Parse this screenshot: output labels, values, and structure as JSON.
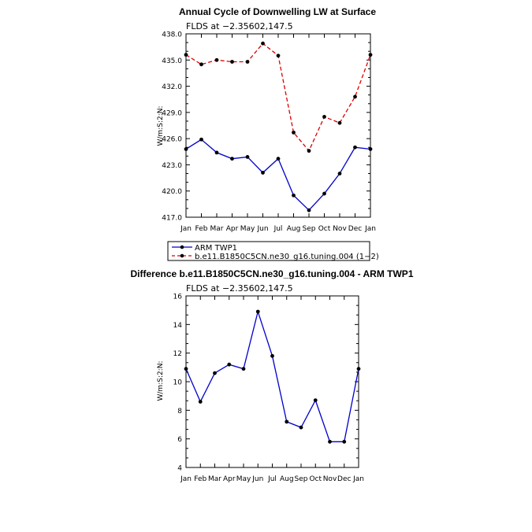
{
  "chart_data": [
    {
      "type": "line",
      "title": "Annual Cycle of Downwelling LW at Surface",
      "subtitle": "FLDS at −2.35602,147.5",
      "ylabel": "W/m:S:2:N:",
      "categories": [
        "Jan",
        "Feb",
        "Mar",
        "Apr",
        "May",
        "Jun",
        "Jul",
        "Aug",
        "Sep",
        "Oct",
        "Nov",
        "Dec",
        "Jan"
      ],
      "ylim": [
        417.0,
        438.0
      ],
      "yticks": [
        "417.0",
        "420.0",
        "423.0",
        "426.0",
        "429.0",
        "432.0",
        "435.0",
        "438.0"
      ],
      "series": [
        {
          "name": "ARM TWP1",
          "color": "#0000cc",
          "dash": "solid",
          "values": [
            424.8,
            425.9,
            424.4,
            423.7,
            423.9,
            422.1,
            423.7,
            419.5,
            417.8,
            419.7,
            422.0,
            425.0,
            424.8
          ]
        },
        {
          "name": "b.e11.B1850C5CN.ne30_g16.tuning.004 (1−2)",
          "color": "#dd0000",
          "dash": "dashed",
          "values": [
            435.6,
            434.5,
            435.0,
            434.8,
            434.8,
            436.9,
            435.5,
            426.7,
            424.6,
            428.5,
            427.8,
            430.8,
            435.6
          ]
        }
      ],
      "legend_placement": "below"
    },
    {
      "type": "line",
      "title": "Difference b.e11.B1850C5CN.ne30_g16.tuning.004 - ARM TWP1",
      "subtitle": "FLDS at −2.35602,147.5",
      "ylabel": "W/m:S:2:N:",
      "categories": [
        "Jan",
        "Feb",
        "Mar",
        "Apr",
        "May",
        "Jun",
        "Jul",
        "Aug",
        "Sep",
        "Oct",
        "Nov",
        "Dec",
        "Jan"
      ],
      "ylim": [
        4,
        16
      ],
      "yticks": [
        "4",
        "6",
        "8",
        "10",
        "12",
        "14",
        "16"
      ],
      "series": [
        {
          "color": "#0000cc",
          "dash": "solid",
          "values": [
            10.9,
            8.6,
            10.6,
            11.2,
            10.9,
            14.9,
            11.8,
            7.2,
            6.8,
            8.7,
            5.8,
            5.8,
            10.9
          ]
        }
      ]
    }
  ]
}
